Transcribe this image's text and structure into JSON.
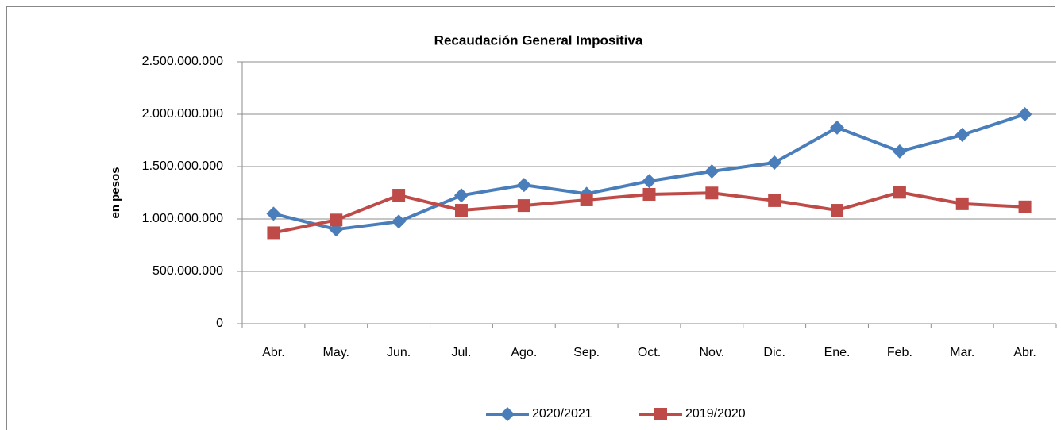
{
  "chart_data": {
    "type": "line",
    "title": "Recaudación General Impositiva",
    "y_label": "en pesos",
    "categories": [
      "Abr.",
      "May.",
      "Jun.",
      "Jul.",
      "Ago.",
      "Sep.",
      "Oct.",
      "Nov.",
      "Dic.",
      "Ene.",
      "Feb.",
      "Mar.",
      "Abr."
    ],
    "series": [
      {
        "name": "2020/2021",
        "color": "#4a7ebb",
        "marker": "diamond",
        "values": [
          1050000000,
          900000000,
          975000000,
          1225000000,
          1325000000,
          1240000000,
          1362000000,
          1455000000,
          1538000000,
          1872000000,
          1645000000,
          1803000000,
          2000000000
        ]
      },
      {
        "name": "2019/2020",
        "color": "#be4b48",
        "marker": "square",
        "values": [
          868000000,
          990000000,
          1227000000,
          1083000000,
          1128000000,
          1182000000,
          1235000000,
          1248000000,
          1175000000,
          1083000000,
          1255000000,
          1145000000,
          1115000000
        ]
      }
    ],
    "ylim": [
      0,
      2500000000
    ],
    "yticks": [
      0,
      {
        "value": 500000000,
        "label": "500.000.000"
      },
      {
        "value": 1000000000,
        "label": "1.000.000.000"
      },
      {
        "value": 1500000000,
        "label": "1.500.000.000"
      },
      {
        "value": 2000000000,
        "label": "2.000.000.000"
      },
      {
        "value": 2500000000,
        "label": "2.500.000.000"
      }
    ],
    "grid": true,
    "legend": "bottom"
  }
}
